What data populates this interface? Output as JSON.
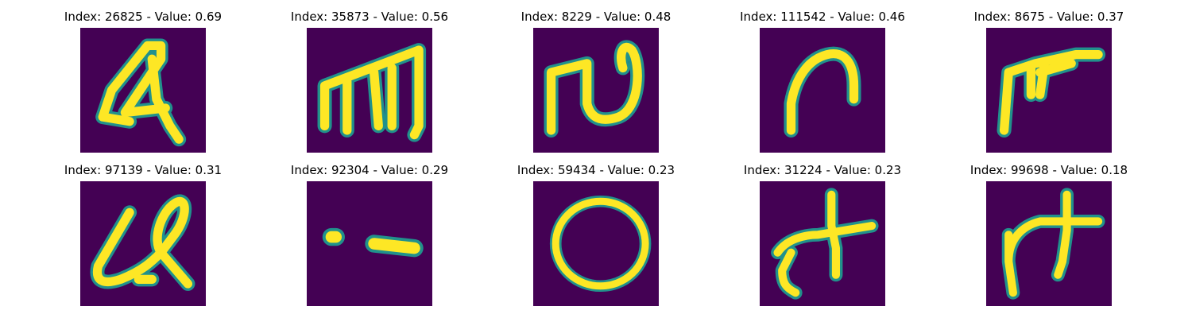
{
  "colors": {
    "background": "#440154",
    "stroke": "#fde725",
    "edge": "#21918c"
  },
  "panels": [
    {
      "label": "Index: 26825 - Value: 0.69",
      "glyph": "curly-a-icon"
    },
    {
      "label": "Index: 35873 - Value: 0.56",
      "glyph": "m-shape-icon"
    },
    {
      "label": "Index: 8229 - Value: 0.48",
      "glyph": "n-wave-icon"
    },
    {
      "label": "Index: 111542 - Value: 0.46",
      "glyph": "n-arch-icon"
    },
    {
      "label": "Index: 8675 - Value: 0.37",
      "glyph": "r-flag-icon"
    },
    {
      "label": "Index: 97139 - Value: 0.31",
      "glyph": "cursive-ul-icon"
    },
    {
      "label": "Index: 92304 - Value: 0.29",
      "glyph": "dot-dash-icon"
    },
    {
      "label": "Index: 59434 - Value: 0.23",
      "glyph": "circle-o-icon"
    },
    {
      "label": "Index: 31224 - Value: 0.23",
      "glyph": "cross-x-icon"
    },
    {
      "label": "Index: 99698 - Value: 0.18",
      "glyph": "cross-hook-icon"
    }
  ]
}
